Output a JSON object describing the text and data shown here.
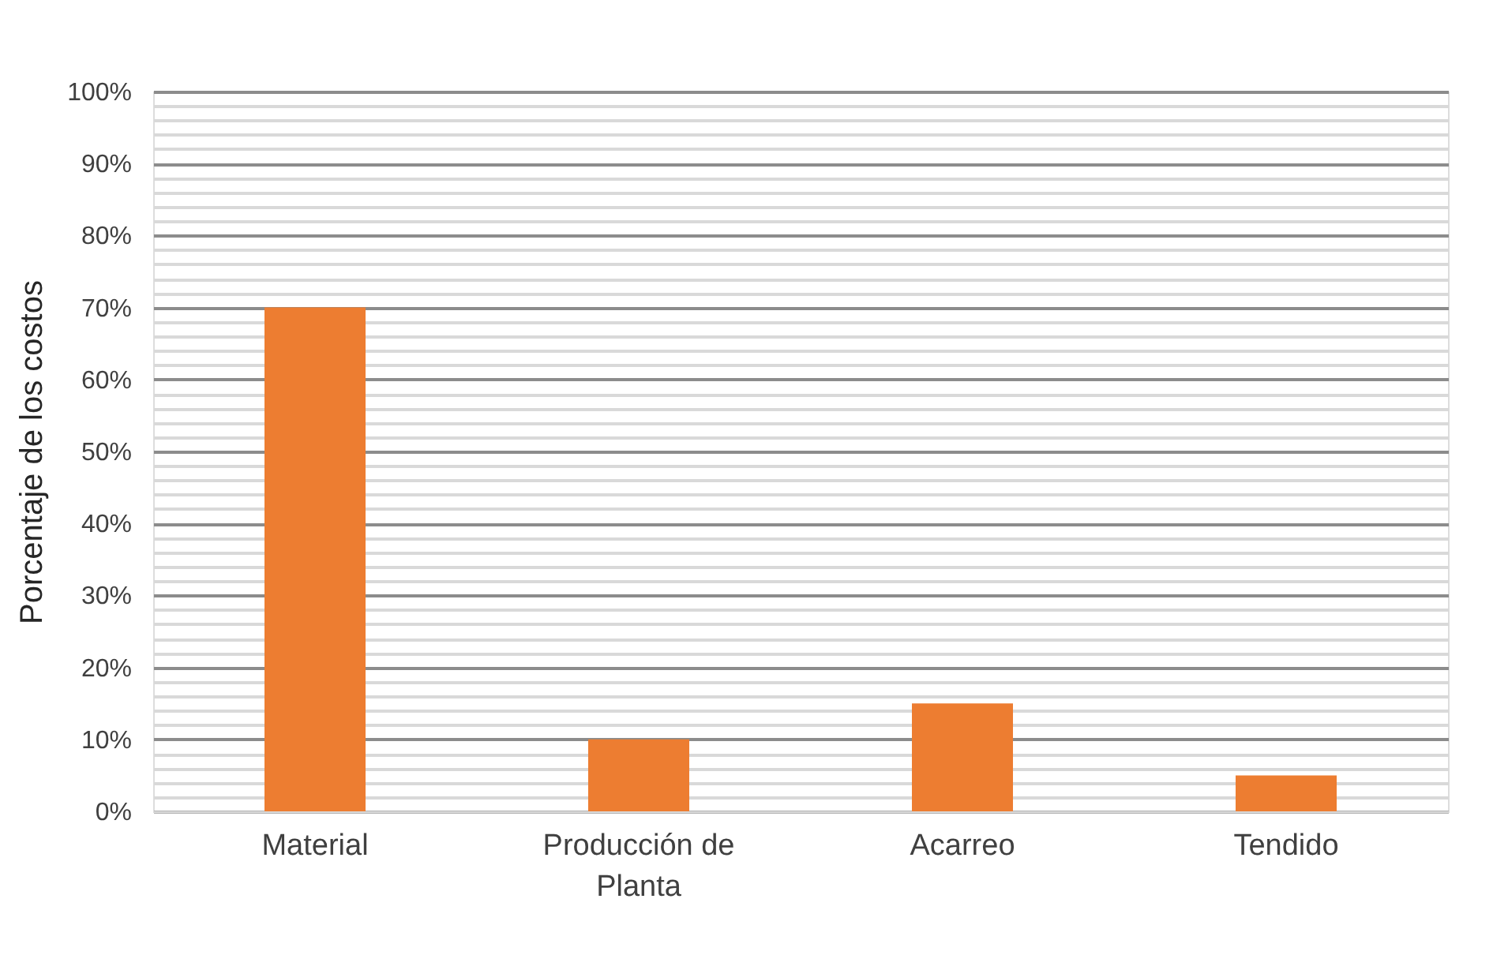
{
  "chart_data": {
    "type": "bar",
    "ylabel": "Porcentaje de los costos",
    "categories": [
      "Material",
      "Producción de Planta",
      "Acarreo",
      "Tendido"
    ],
    "series": [
      {
        "color": "#ed7d31",
        "values": [
          70,
          10,
          15,
          5
        ]
      }
    ],
    "ylim": [
      0,
      100
    ],
    "yticks": [
      {
        "value": 0,
        "label": "0%"
      },
      {
        "value": 2,
        "label": null
      },
      {
        "value": 4,
        "label": null
      },
      {
        "value": 6,
        "label": null
      },
      {
        "value": 8,
        "label": null
      },
      {
        "value": 10,
        "label": "10%"
      },
      {
        "value": 12,
        "label": null
      },
      {
        "value": 14,
        "label": null
      },
      {
        "value": 16,
        "label": null
      },
      {
        "value": 18,
        "label": null
      },
      {
        "value": 20,
        "label": "20%"
      },
      {
        "value": 22,
        "label": null
      },
      {
        "value": 24,
        "label": null
      },
      {
        "value": 26,
        "label": null
      },
      {
        "value": 28,
        "label": null
      },
      {
        "value": 30,
        "label": "30%"
      },
      {
        "value": 32,
        "label": null
      },
      {
        "value": 34,
        "label": null
      },
      {
        "value": 36,
        "label": null
      },
      {
        "value": 38,
        "label": null
      },
      {
        "value": 40,
        "label": "40%"
      },
      {
        "value": 42,
        "label": null
      },
      {
        "value": 44,
        "label": null
      },
      {
        "value": 46,
        "label": null
      },
      {
        "value": 48,
        "label": null
      },
      {
        "value": 50,
        "label": "50%"
      },
      {
        "value": 52,
        "label": null
      },
      {
        "value": 54,
        "label": null
      },
      {
        "value": 56,
        "label": null
      },
      {
        "value": 58,
        "label": null
      },
      {
        "value": 60,
        "label": "60%"
      },
      {
        "value": 62,
        "label": null
      },
      {
        "value": 64,
        "label": null
      },
      {
        "value": 66,
        "label": null
      },
      {
        "value": 68,
        "label": null
      },
      {
        "value": 70,
        "label": "70%"
      },
      {
        "value": 72,
        "label": null
      },
      {
        "value": 74,
        "label": null
      },
      {
        "value": 76,
        "label": null
      },
      {
        "value": 78,
        "label": null
      },
      {
        "value": 80,
        "label": "80%"
      },
      {
        "value": 82,
        "label": null
      },
      {
        "value": 84,
        "label": null
      },
      {
        "value": 86,
        "label": null
      },
      {
        "value": 88,
        "label": null
      },
      {
        "value": 90,
        "label": "90%"
      },
      {
        "value": 92,
        "label": null
      },
      {
        "value": 94,
        "label": null
      },
      {
        "value": 96,
        "label": null
      },
      {
        "value": 98,
        "label": null
      },
      {
        "value": 100,
        "label": "100%"
      }
    ],
    "grid": "y"
  }
}
